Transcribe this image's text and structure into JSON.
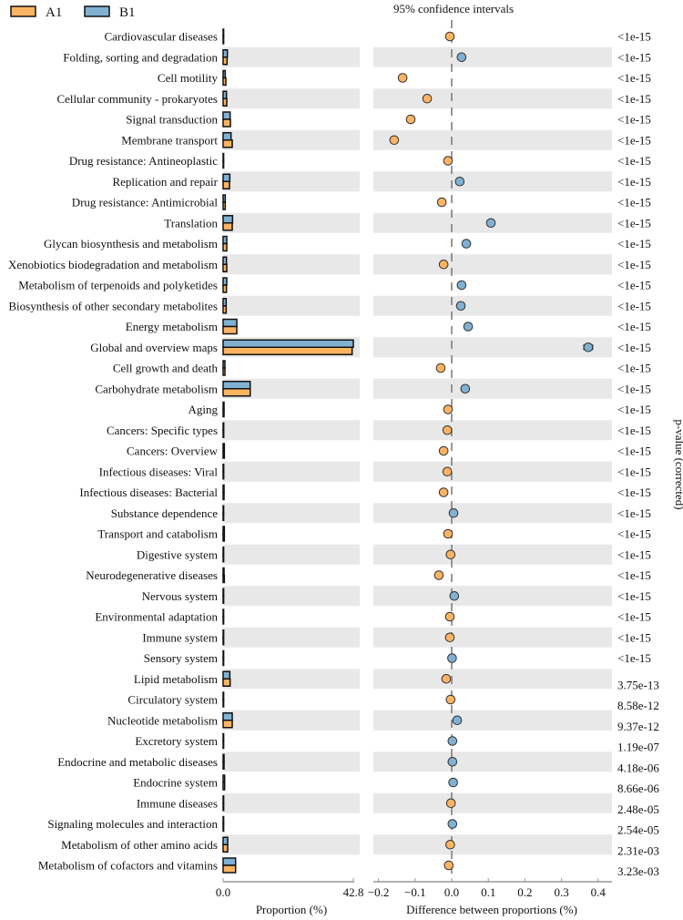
{
  "chart_data": {
    "type": "extended-error-bar",
    "legend": [
      {
        "name": "A1",
        "color": "#FDB462"
      },
      {
        "name": "B1",
        "color": "#80B1D3"
      }
    ],
    "legend_placement": "top-left",
    "title": "95% confidence intervals",
    "left_panel": {
      "xlabel": "Proportion (%)",
      "xlim": [
        0,
        42.8
      ],
      "tick_labels": [
        "0.0",
        "42.8"
      ]
    },
    "right_panel": {
      "xlabel": "Difference between proportions (%)",
      "xlim": [
        -0.22,
        0.44
      ],
      "ticks": [
        -0.2,
        -0.1,
        0.0,
        0.1,
        0.2,
        0.3,
        0.4
      ],
      "tick_labels": [
        "−0.2",
        "−0.1",
        "0.0",
        "0.1",
        "0.2",
        "0.3",
        "0.4"
      ]
    },
    "pvalue_label": "p-value (corrected)",
    "categories": [
      "Cardiovascular diseases",
      "Folding, sorting and degradation",
      "Cell motility",
      "Cellular community - prokaryotes",
      "Signal transduction",
      "Membrane transport",
      "Drug resistance: Antineoplastic",
      "Replication and repair",
      "Drug resistance: Antimicrobial",
      "Translation",
      "Glycan biosynthesis and metabolism",
      "Xenobiotics biodegradation and metabolism",
      "Metabolism of terpenoids and polyketides",
      "Biosynthesis of other secondary metabolites",
      "Energy metabolism",
      "Global and overview maps",
      "Cell growth and death",
      "Carbohydrate metabolism",
      "Aging",
      "Cancers: Specific types",
      "Cancers: Overview",
      "Infectious diseases: Viral",
      "Infectious diseases: Bacterial",
      "Substance dependence",
      "Transport and catabolism",
      "Digestive system",
      "Neurodegenerative diseases",
      "Nervous system",
      "Environmental adaptation",
      "Immune system",
      "Sensory system",
      "Lipid metabolism",
      "Circulatory system",
      "Nucleotide metabolism",
      "Excretory system",
      "Endocrine and metabolic diseases",
      "Endocrine system",
      "Immune diseases",
      "Signaling molecules and interaction",
      "Metabolism of other amino acids",
      "Metabolism of cofactors and vitamins"
    ],
    "series": [
      {
        "name": "A1",
        "values": [
          0.05,
          1.3,
          0.9,
          1.2,
          2.4,
          3.0,
          0.05,
          2.1,
          0.7,
          3.0,
          1.2,
          1.2,
          1.1,
          1.0,
          4.5,
          42.4,
          0.6,
          8.9,
          0.3,
          0.2,
          0.4,
          0.2,
          0.3,
          0.1,
          0.4,
          0.05,
          0.4,
          0.1,
          0.05,
          0.05,
          0.05,
          2.3,
          0.05,
          3.0,
          0.05,
          0.3,
          0.5,
          0.05,
          0.1,
          1.5,
          4.1
        ]
      },
      {
        "name": "B1",
        "values": [
          0.05,
          1.4,
          0.7,
          1.1,
          2.3,
          2.6,
          0.05,
          2.2,
          0.7,
          3.1,
          1.2,
          1.1,
          1.2,
          1.0,
          4.5,
          42.8,
          0.6,
          8.9,
          0.3,
          0.2,
          0.4,
          0.2,
          0.3,
          0.1,
          0.4,
          0.05,
          0.3,
          0.1,
          0.05,
          0.05,
          0.05,
          2.2,
          0.05,
          3.0,
          0.05,
          0.3,
          0.5,
          0.05,
          0.1,
          1.5,
          4.1
        ]
      }
    ],
    "difference": [
      -0.005,
      0.027,
      -0.134,
      -0.067,
      -0.112,
      -0.157,
      -0.01,
      0.022,
      -0.027,
      0.107,
      0.04,
      -0.022,
      0.027,
      0.025,
      0.045,
      0.373,
      -0.03,
      0.037,
      -0.01,
      -0.012,
      -0.022,
      -0.012,
      -0.022,
      0.005,
      -0.01,
      -0.003,
      -0.035,
      0.007,
      -0.005,
      -0.005,
      0.001,
      -0.015,
      -0.003,
      0.015,
      0.002,
      0.002,
      0.004,
      -0.002,
      0.002,
      -0.004,
      -0.008
    ],
    "ci_halfwidth": [
      0.002,
      0.003,
      0.003,
      0.003,
      0.003,
      0.003,
      0.002,
      0.003,
      0.002,
      0.003,
      0.003,
      0.003,
      0.003,
      0.003,
      0.004,
      0.012,
      0.002,
      0.004,
      0.002,
      0.002,
      0.002,
      0.002,
      0.002,
      0.002,
      0.002,
      0.002,
      0.002,
      0.002,
      0.002,
      0.002,
      0.002,
      0.003,
      0.002,
      0.003,
      0.002,
      0.002,
      0.002,
      0.002,
      0.002,
      0.002,
      0.003
    ],
    "p_values": [
      "<1e-15",
      "<1e-15",
      "<1e-15",
      "<1e-15",
      "<1e-15",
      "<1e-15",
      "<1e-15",
      "<1e-15",
      "<1e-15",
      "<1e-15",
      "<1e-15",
      "<1e-15",
      "<1e-15",
      "<1e-15",
      "<1e-15",
      "<1e-15",
      "<1e-15",
      "<1e-15",
      "<1e-15",
      "<1e-15",
      "<1e-15",
      "<1e-15",
      "<1e-15",
      "<1e-15",
      "<1e-15",
      "<1e-15",
      "<1e-15",
      "<1e-15",
      "<1e-15",
      "<1e-15",
      "<1e-15",
      "3.75e-13",
      "8.58e-12",
      "9.37e-12",
      "1.19e-07",
      "4.18e-06",
      "8.66e-06",
      "2.48e-05",
      "2.54e-05",
      "2.31e-03",
      "3.23e-03"
    ]
  }
}
